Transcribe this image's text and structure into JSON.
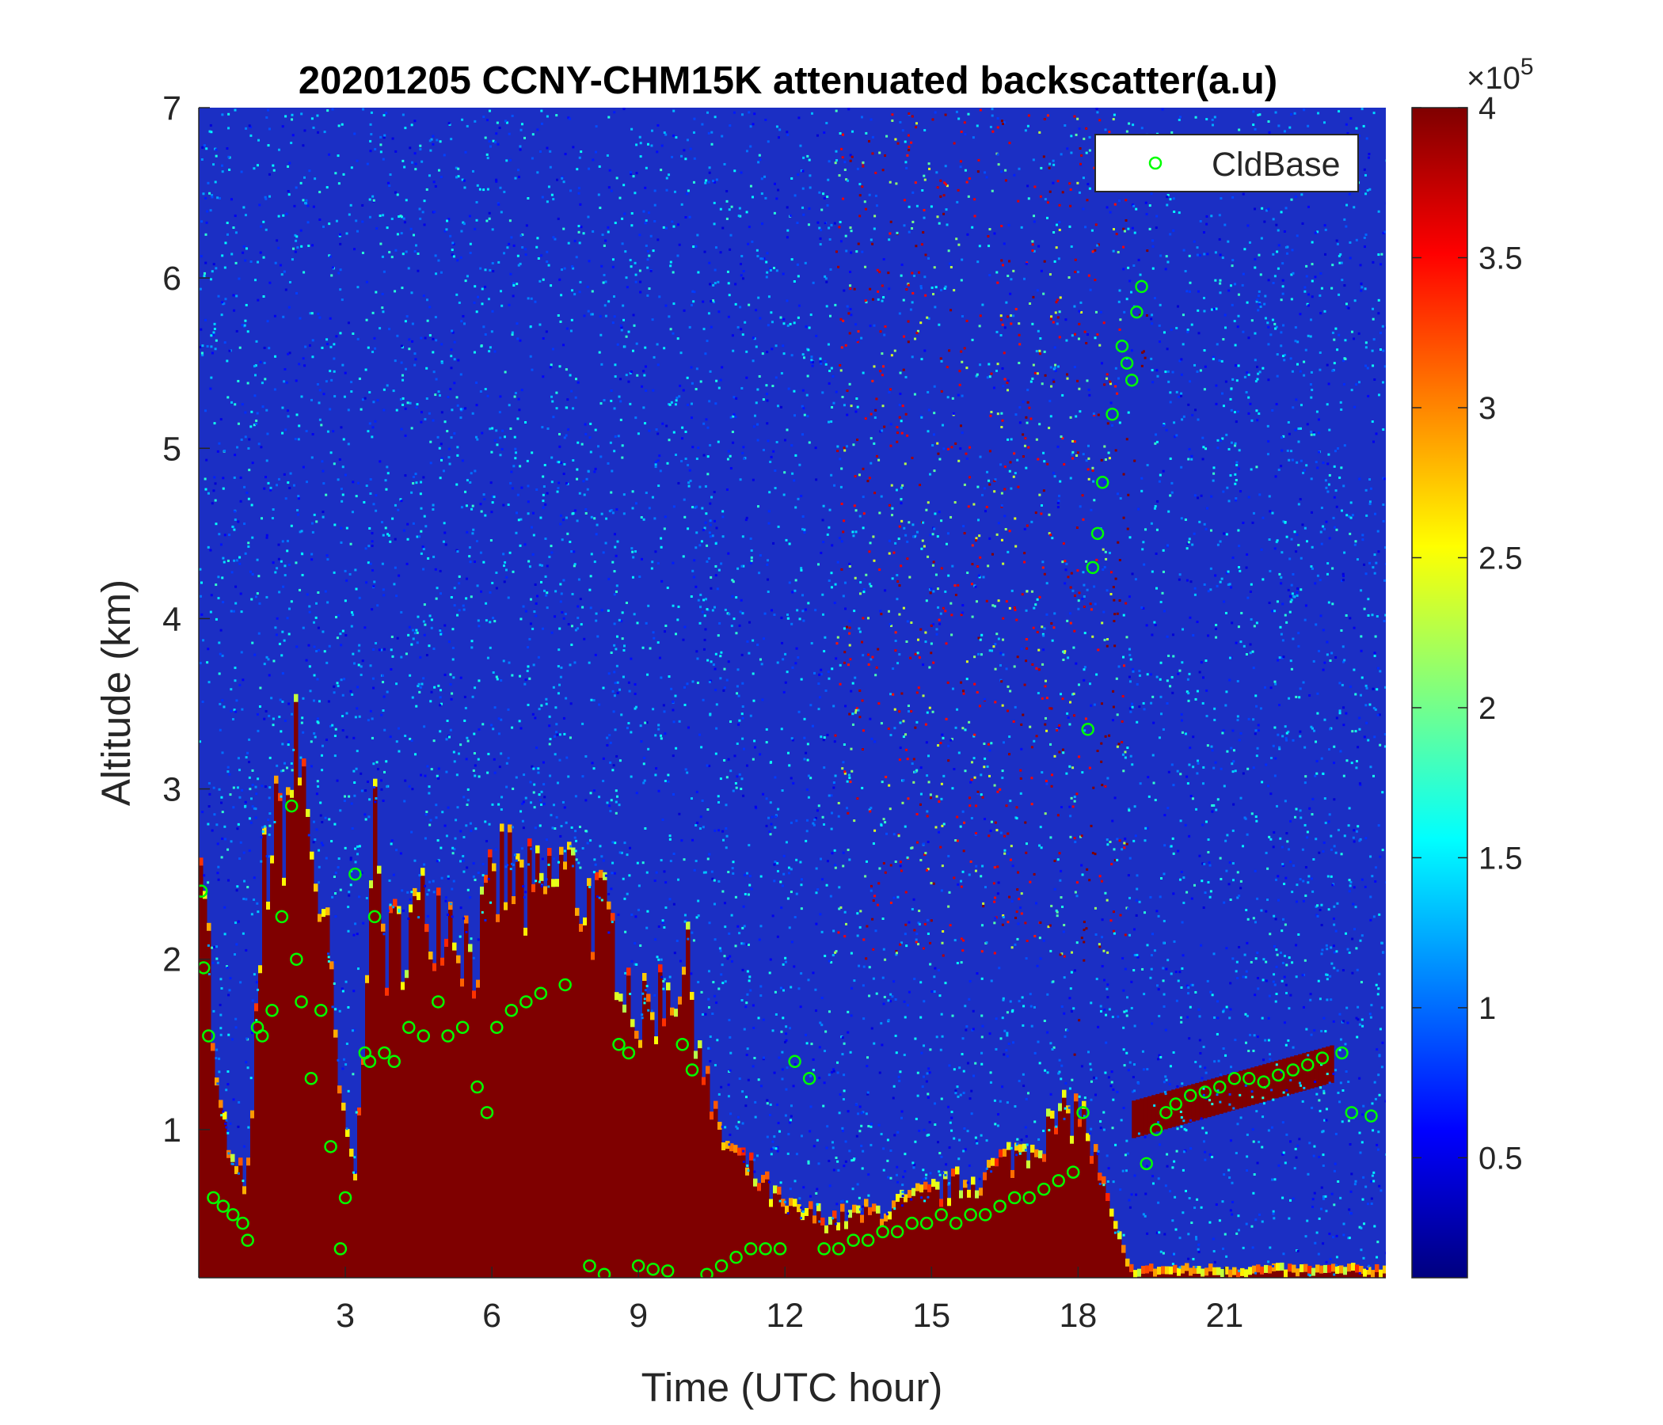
{
  "chart_data": {
    "type": "heatmap",
    "title": "20201205 CCNY-CHM15K attenuated backscatter(a.u)",
    "xlabel": "Time (UTC hour)",
    "ylabel": "Altitude (km)",
    "xlim": [
      0,
      24.3
    ],
    "ylim": [
      0.13,
      7
    ],
    "xticks": [
      3,
      6,
      9,
      12,
      15,
      18,
      21
    ],
    "yticks": [
      1,
      2,
      3,
      4,
      5,
      6,
      7
    ],
    "colormap": "jet",
    "colorbar": {
      "range": [
        0.1,
        4
      ],
      "ticks": [
        0.5,
        1,
        1.5,
        2,
        2.5,
        3,
        3.5,
        4
      ],
      "tick_labels": [
        "0.5",
        "1",
        "1.5",
        "2",
        "2.5",
        "3",
        "3.5",
        "4"
      ],
      "exponent_label": "×10",
      "exponent": "5"
    },
    "legend": {
      "placement": "top-right",
      "entries": [
        {
          "label": "CldBase",
          "marker": "circle",
          "color": "#00ff00"
        }
      ]
    },
    "series": [
      {
        "name": "CldBase",
        "type": "scatter",
        "x": [
          0.05,
          0.1,
          0.2,
          0.3,
          0.5,
          0.7,
          0.9,
          1.0,
          1.2,
          1.3,
          1.5,
          1.7,
          1.9,
          2.0,
          2.1,
          2.3,
          2.5,
          2.7,
          2.9,
          3.0,
          3.2,
          3.4,
          3.5,
          3.6,
          3.8,
          4.0,
          4.3,
          4.6,
          4.9,
          5.1,
          5.4,
          5.7,
          5.9,
          6.1,
          6.4,
          6.7,
          7.0,
          7.5,
          8.0,
          8.3,
          8.6,
          8.8,
          9.0,
          9.3,
          9.6,
          9.9,
          10.1,
          10.4,
          10.7,
          11.0,
          11.3,
          11.6,
          11.9,
          12.2,
          12.5,
          12.8,
          13.1,
          13.4,
          13.7,
          14.0,
          14.3,
          14.6,
          14.9,
          15.2,
          15.5,
          15.8,
          16.1,
          16.4,
          16.7,
          17.0,
          17.3,
          17.6,
          17.9,
          18.1,
          18.2,
          18.3,
          18.4,
          18.5,
          18.7,
          18.9,
          19.0,
          19.1,
          19.2,
          19.3,
          19.4,
          19.6,
          19.8,
          20.0,
          20.3,
          20.6,
          20.9,
          21.2,
          21.5,
          21.8,
          22.1,
          22.4,
          22.7,
          23.0,
          23.4,
          23.6,
          24.0
        ],
        "y": [
          2.4,
          1.95,
          1.55,
          0.6,
          0.55,
          0.5,
          0.45,
          0.35,
          1.6,
          1.55,
          1.7,
          2.25,
          2.9,
          2.0,
          1.75,
          1.3,
          1.7,
          0.9,
          0.3,
          0.6,
          2.5,
          1.45,
          1.4,
          2.25,
          1.45,
          1.4,
          1.6,
          1.55,
          1.75,
          1.55,
          1.6,
          1.25,
          1.1,
          1.6,
          1.7,
          1.75,
          1.8,
          1.85,
          0.2,
          0.15,
          1.5,
          1.45,
          0.2,
          0.18,
          0.17,
          1.5,
          1.35,
          0.15,
          0.2,
          0.25,
          0.3,
          0.3,
          0.3,
          1.4,
          1.3,
          0.3,
          0.3,
          0.35,
          0.35,
          0.4,
          0.4,
          0.45,
          0.45,
          0.5,
          0.45,
          0.5,
          0.5,
          0.55,
          0.6,
          0.6,
          0.65,
          0.7,
          0.75,
          1.1,
          3.35,
          4.3,
          4.5,
          4.8,
          5.2,
          5.6,
          5.5,
          5.4,
          5.8,
          5.95,
          0.8,
          1.0,
          1.1,
          1.15,
          1.2,
          1.22,
          1.25,
          1.3,
          1.3,
          1.28,
          1.32,
          1.35,
          1.38,
          1.42,
          1.45,
          1.1,
          1.08
        ]
      }
    ]
  }
}
